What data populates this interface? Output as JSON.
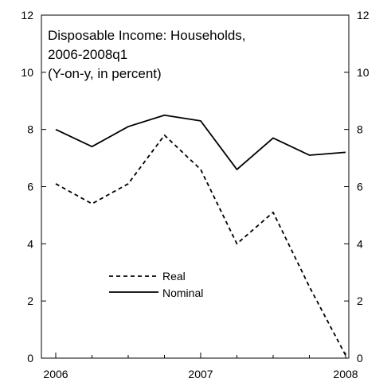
{
  "chart_data": {
    "type": "line",
    "title_lines": [
      "Disposable Income: Households,",
      "2006-2008q1",
      "(Y-on-y, in percent)"
    ],
    "x": [
      "2006q1",
      "2006q2",
      "2006q3",
      "2006q4",
      "2007q1",
      "2007q2",
      "2007q3",
      "2007q4",
      "2008q1"
    ],
    "x_tick_labels": [
      "2006",
      "2007",
      "2008"
    ],
    "ylim": [
      0,
      12
    ],
    "y_ticks": [
      "0",
      "2",
      "4",
      "6",
      "8",
      "10",
      "12"
    ],
    "series": [
      {
        "name": "Real",
        "style": "dashed",
        "color": "#000000",
        "values": [
          6.1,
          5.4,
          6.1,
          7.8,
          6.6,
          4.0,
          5.1,
          2.5,
          0.1
        ]
      },
      {
        "name": "Nominal",
        "style": "solid",
        "color": "#000000",
        "values": [
          8.0,
          7.4,
          8.1,
          8.5,
          8.3,
          6.6,
          7.7,
          7.1,
          7.2
        ]
      }
    ],
    "legend_position": "lower-left",
    "grid": false,
    "right_axis_mirrored": true
  }
}
